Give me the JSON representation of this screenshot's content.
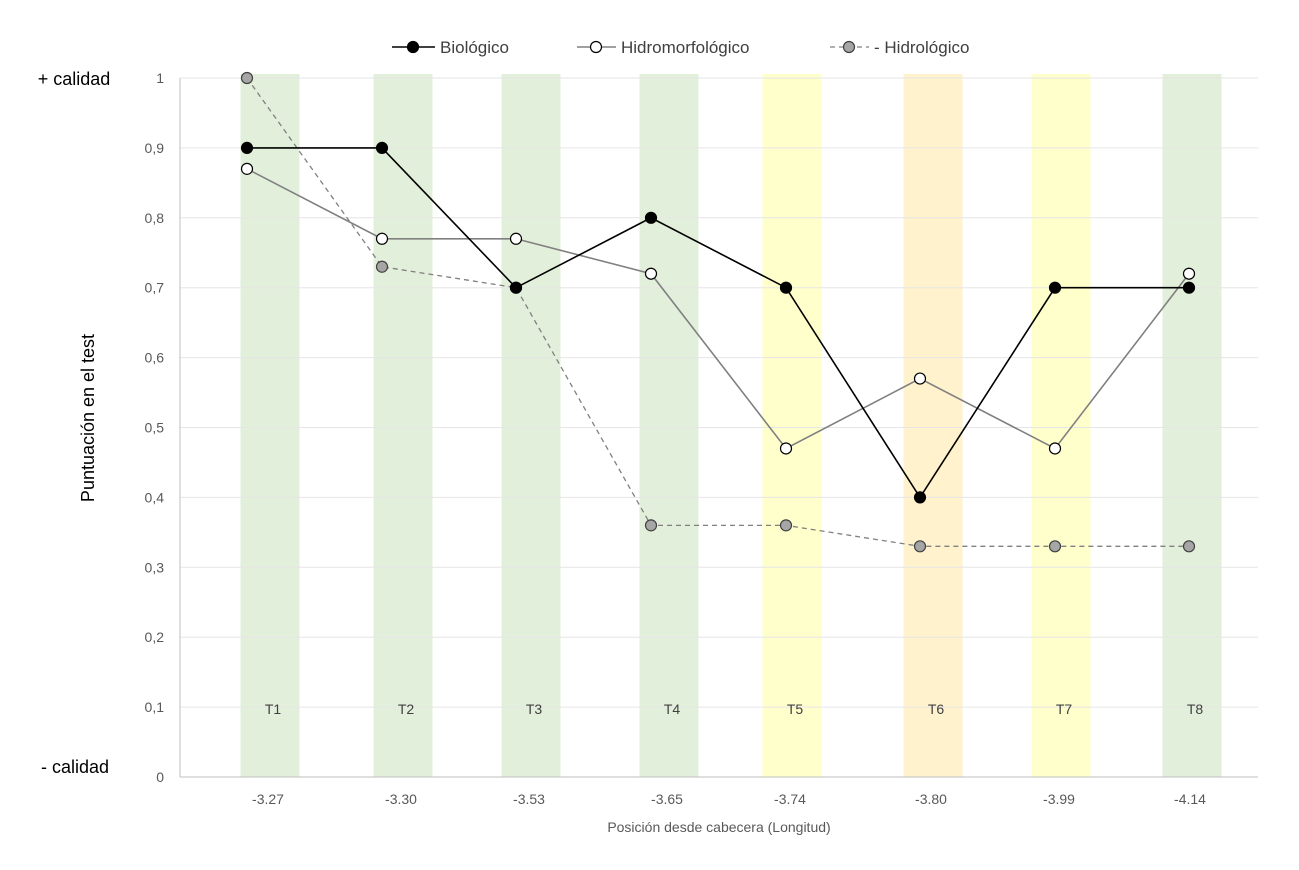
{
  "chart_data": {
    "type": "line",
    "title": "",
    "xlabel": "Posición desde cabecera (Longitud)",
    "ylabel": "Puntuación en el test",
    "quality_high_label": "+ calidad",
    "quality_low_label": "- calidad",
    "categories": [
      "-3.27",
      "-3.30",
      "-3.53",
      "-3.65",
      "-3.74",
      "-3.80",
      "-3.99",
      "-4.14"
    ],
    "ylim": [
      0,
      1
    ],
    "ytick_values": [
      0,
      0.1,
      0.2,
      0.3,
      0.4,
      0.5,
      0.6,
      0.7,
      0.8,
      0.9,
      1
    ],
    "ytick_labels": [
      "0",
      "0,1",
      "0,2",
      "0,3",
      "0,4",
      "0,5",
      "0,6",
      "0,7",
      "0,8",
      "0,9",
      "1"
    ],
    "grid": true,
    "legend_position": "top-center",
    "bands": [
      {
        "label": "T1",
        "color": "#e2efda"
      },
      {
        "label": "T2",
        "color": "#e2efda"
      },
      {
        "label": "T3",
        "color": "#e2efda"
      },
      {
        "label": "T4",
        "color": "#e2efda"
      },
      {
        "label": "T5",
        "color": "#ffffcc"
      },
      {
        "label": "T6",
        "color": "#fff2cc"
      },
      {
        "label": "T7",
        "color": "#ffffcc"
      },
      {
        "label": "T8",
        "color": "#e2efda"
      }
    ],
    "series": [
      {
        "name": "Biológico",
        "values": [
          0.9,
          0.9,
          0.7,
          0.8,
          0.7,
          0.4,
          0.7,
          0.7
        ],
        "line_color": "#000000",
        "marker_fill": "#000000",
        "marker_stroke": "#000000",
        "dashed": false
      },
      {
        "name": "Hidromorfológico",
        "values": [
          0.87,
          0.77,
          0.77,
          0.72,
          0.47,
          0.57,
          0.47,
          0.72
        ],
        "line_color": "#808080",
        "marker_fill": "#ffffff",
        "marker_stroke": "#000000",
        "dashed": false
      },
      {
        "name": "Hidrológico",
        "values": [
          1.0,
          0.73,
          0.7,
          0.36,
          0.36,
          0.33,
          0.33,
          0.33
        ],
        "line_color": "#808080",
        "marker_fill": "#a6a6a6",
        "marker_stroke": "#404040",
        "dashed": true
      }
    ]
  }
}
